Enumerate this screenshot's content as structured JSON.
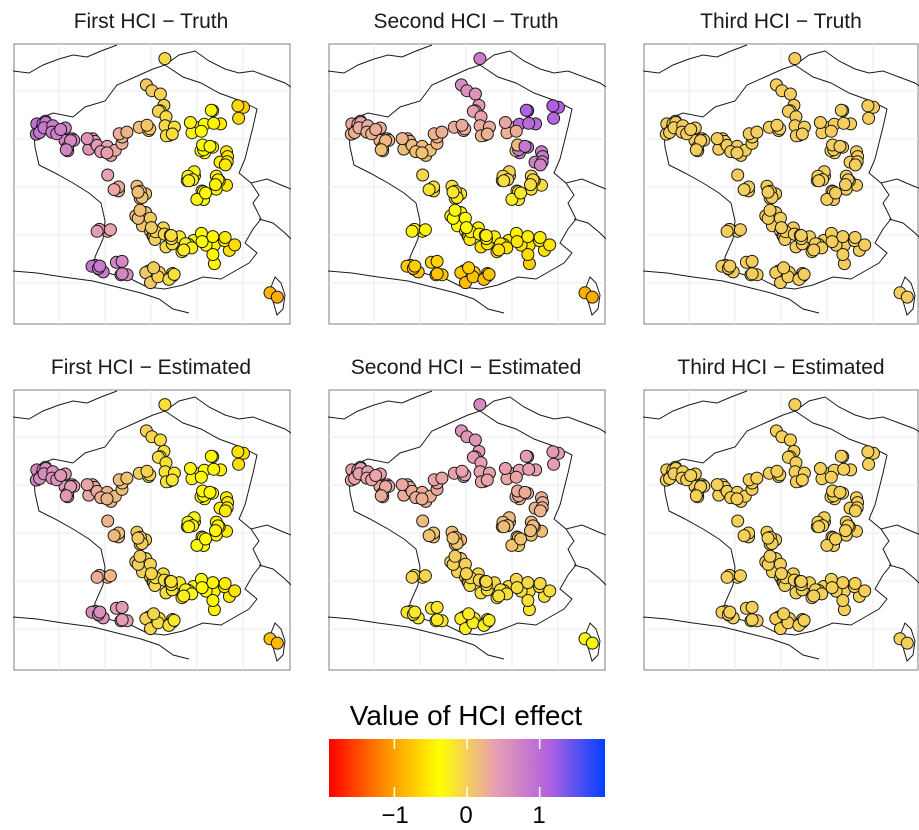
{
  "chart_data": {
    "type": "scatter",
    "description_free": true,
    "panels": [
      {
        "title": "First HCI − Truth",
        "pattern": "first_truth"
      },
      {
        "title": "Second HCI − Truth",
        "pattern": "second_truth"
      },
      {
        "title": "Third HCI − Truth",
        "pattern": "third_truth"
      },
      {
        "title": "First HCI − Estimated",
        "pattern": "first_est"
      },
      {
        "title": "Second HCI − Estimated",
        "pattern": "second_est"
      },
      {
        "title": "Third HCI − Estimated",
        "pattern": "third_est"
      }
    ],
    "legend": {
      "title": "Value of HCI effect",
      "range": [
        -1.9,
        1.9
      ],
      "ticks": [
        {
          "value": -1,
          "label": "−1"
        },
        {
          "value": 0,
          "label": "0"
        },
        {
          "value": 1,
          "label": "1"
        }
      ],
      "colors": [
        "#ff0000",
        "#ff8c00",
        "#ffff00",
        "#e8a0b0",
        "#b060e0",
        "#0040ff"
      ]
    }
  }
}
